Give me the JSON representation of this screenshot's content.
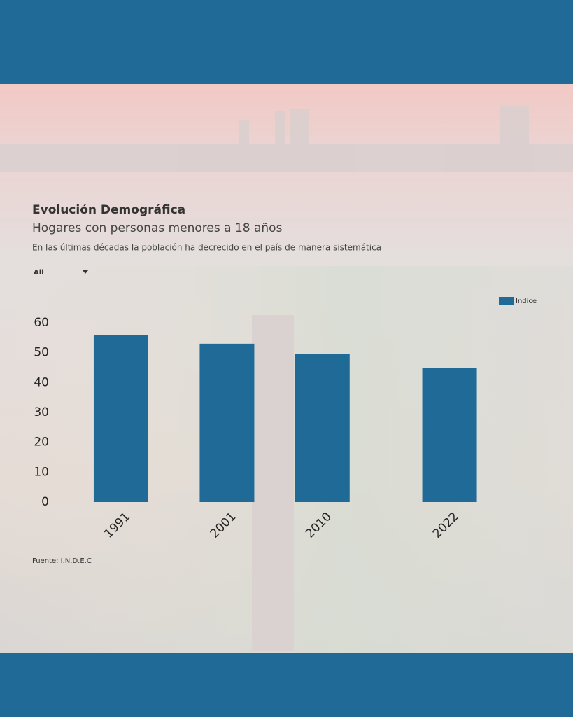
{
  "chart_data": {
    "type": "bar",
    "title": "Evolución Demográfica",
    "subtitle": "Hogares con personas menores a 18 años",
    "description": "En las últimas décadas la población ha decrecido en el país de manera sistemática",
    "filter": "All",
    "source": "Fuente: I.N.D.E.C",
    "x": [
      1991,
      2001,
      2010,
      2022
    ],
    "xlim": [
      1988,
      2025
    ],
    "xticks": [
      1991,
      2001,
      2010,
      2022
    ],
    "series": [
      {
        "name": "Indice",
        "color": "#1f6a96",
        "values": [
          56,
          53,
          49.5,
          45
        ]
      }
    ],
    "ylim": [
      0,
      60
    ],
    "yticks": [
      0,
      10,
      20,
      30,
      40,
      50,
      60
    ],
    "grid": false,
    "legend": "top-right"
  }
}
